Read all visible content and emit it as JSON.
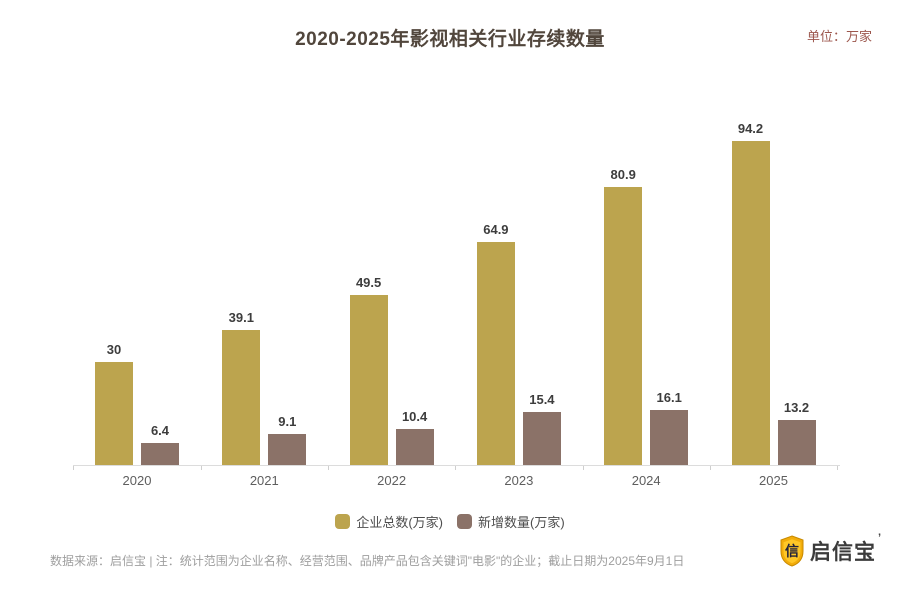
{
  "header": {
    "title": "2020-2025年影视相关行业存续数量",
    "unit_label": "单位：万家"
  },
  "chart_data": {
    "type": "bar",
    "title": "2020-2025年影视相关行业存续数量",
    "unit": "万家",
    "categories": [
      "2020",
      "2021",
      "2022",
      "2023",
      "2024",
      "2025"
    ],
    "series": [
      {
        "name": "企业总数(万家)",
        "color": "#BCA44E",
        "values": [
          30,
          39.1,
          49.5,
          64.9,
          80.9,
          94.2
        ]
      },
      {
        "name": "新增数量(万家)",
        "color": "#8B7268",
        "values": [
          6.4,
          9.1,
          10.4,
          15.4,
          16.1,
          13.2
        ]
      }
    ],
    "ylim": [
      0,
      100
    ],
    "grid": false,
    "value_labels": true,
    "legend_position": "bottom"
  },
  "footer": {
    "source_note": "数据来源：启信宝 | 注：统计范围为企业名称、经营范围、品牌产品包含关键词\"电影\"的企业；截止日期为2025年9月1日",
    "logo_text": "启信宝",
    "logo_trademark": "’",
    "logo_shield_glyph": "信",
    "logo_gold": "#F2AC0A"
  }
}
